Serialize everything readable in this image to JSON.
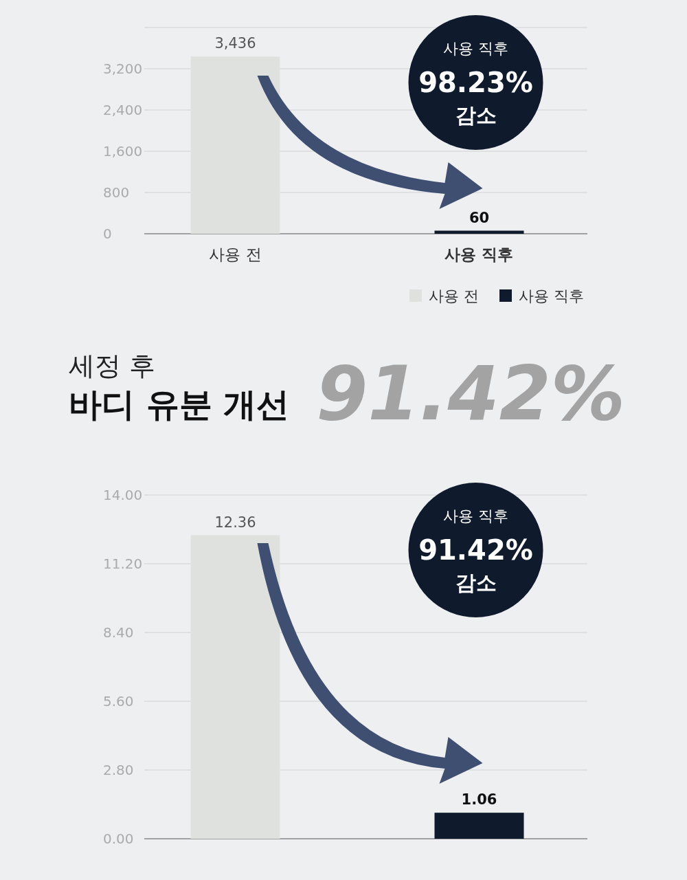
{
  "chart_data": [
    {
      "type": "bar",
      "categories": [
        "사용 전",
        "사용 직후"
      ],
      "series": [
        {
          "name": "사용 전",
          "color": "#dfe1df",
          "values": [
            3436,
            null
          ],
          "value_labels": [
            "3,436",
            null
          ]
        },
        {
          "name": "사용 직후",
          "color": "#0f1b2d",
          "values": [
            null,
            60
          ],
          "value_labels": [
            null,
            "60"
          ]
        }
      ],
      "ylim": [
        0,
        4000
      ],
      "yticks": [
        0,
        {
          "value": 800,
          "label": "800"
        },
        {
          "value": 1600,
          "label": "1,600"
        },
        {
          "value": 2400,
          "label": "2,400"
        },
        {
          "value": 3200,
          "label": "3,200"
        },
        {
          "value": 4000,
          "label": null
        }
      ],
      "grid": "y",
      "legend": "bottom right",
      "annotations": [
        "사용 직후",
        "98.23%",
        "감소"
      ]
    },
    {
      "type": "bar",
      "subtitle": "세정 후",
      "title": "바디 유분 개선",
      "categories": [
        null,
        null
      ],
      "values": [
        12.36,
        1.06
      ],
      "colors": [
        "#dfe1df",
        "#0f1b2d"
      ],
      "ylim": [
        0,
        14
      ],
      "yticks": [
        {
          "value": 0,
          "label": "0.00"
        },
        {
          "value": 2.8,
          "label": "2.80"
        },
        {
          "value": 5.6,
          "label": "5.60"
        },
        {
          "value": 8.4,
          "label": "8.40"
        },
        {
          "value": 11.2,
          "label": "11.20"
        },
        {
          "value": 14,
          "label": "14.00"
        }
      ],
      "grid": "y",
      "data_labels": true,
      "annotations": [
        "91.42%",
        "사용 직후",
        "91.42%",
        "감소"
      ]
    }
  ]
}
